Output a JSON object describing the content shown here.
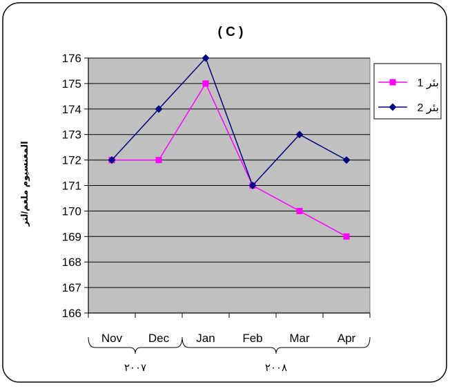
{
  "chart_data": {
    "type": "line",
    "title": "( C )",
    "ylabel": "المغنسيوم ملغم/لتر",
    "xlabel": "",
    "categories": [
      "Nov",
      "Dec",
      "Jan",
      "Feb",
      "Mar",
      "Apr"
    ],
    "year_groups": [
      {
        "label": "٢٠٠٧",
        "categories": [
          "Nov",
          "Dec"
        ]
      },
      {
        "label": "٢٠٠٨",
        "categories": [
          "Jan",
          "Feb",
          "Mar",
          "Apr"
        ]
      }
    ],
    "ylim": [
      166,
      176
    ],
    "yticks": [
      166,
      167,
      168,
      169,
      170,
      171,
      172,
      173,
      174,
      175,
      176
    ],
    "grid": true,
    "legend_position": "right",
    "plot_background": "#c0c0c0",
    "series": [
      {
        "name": "بئر 1",
        "color": "#ff00ff",
        "marker": "square",
        "values": [
          172,
          172,
          175,
          171,
          170,
          169
        ]
      },
      {
        "name": "بئر 2",
        "color": "#000080",
        "marker": "diamond",
        "values": [
          172,
          174,
          176,
          171,
          173,
          172
        ]
      }
    ]
  }
}
